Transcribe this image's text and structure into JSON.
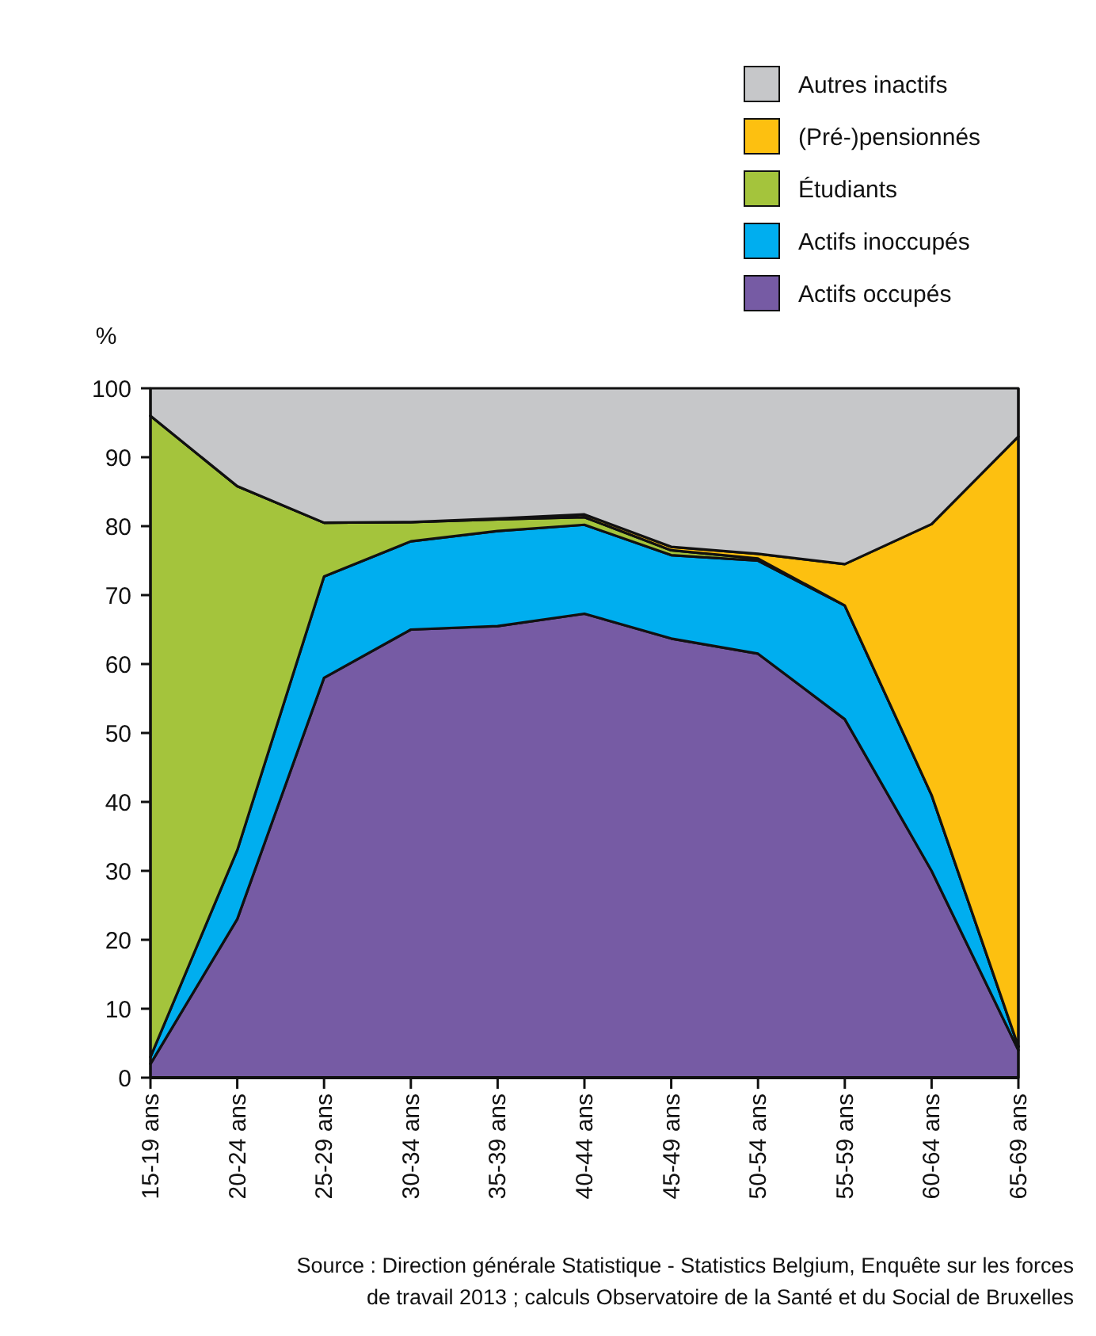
{
  "chart_data": {
    "type": "area",
    "stacked": true,
    "ylabel": "%",
    "categories": [
      "15-19 ans",
      "20-24 ans",
      "25-29 ans",
      "30-34 ans",
      "35-39 ans",
      "40-44 ans",
      "45-49 ans",
      "50-54 ans",
      "55-59 ans",
      "60-64 ans",
      "65-69 ans"
    ],
    "series": [
      {
        "name": "Actifs occupés",
        "color": "#765ba4",
        "values": [
          2,
          23,
          58,
          65,
          65.5,
          67.3,
          63.7,
          61.5,
          52,
          30,
          4
        ]
      },
      {
        "name": "Actifs inoccupés",
        "color": "#00aeef",
        "values": [
          1,
          10,
          14.7,
          12.8,
          13.8,
          12.9,
          12.1,
          13.5,
          16.5,
          11,
          0.5
        ]
      },
      {
        "name": "Étudiants",
        "color": "#a4c43c",
        "values": [
          93,
          52.8,
          7.8,
          2.8,
          1.7,
          1.1,
          0.7,
          0.3,
          0,
          0,
          0
        ]
      },
      {
        "name": "(Pré-)pensionnés",
        "color": "#fdc010",
        "values": [
          0,
          0,
          0,
          0,
          0.1,
          0.4,
          0.5,
          0.7,
          6,
          39.3,
          88.5
        ]
      },
      {
        "name": "Autres inactifs",
        "color": "#c6c7c9",
        "values": [
          4,
          14.2,
          19.5,
          19.4,
          18.9,
          18.3,
          23,
          24,
          25.5,
          19.7,
          7
        ]
      }
    ],
    "ylim": [
      0,
      100
    ],
    "yticks": [
      0,
      10,
      20,
      30,
      40,
      50,
      60,
      70,
      80,
      90,
      100
    ],
    "legend": "top right",
    "annotations": [
      "Source : Direction générale Statistique - Statistics Belgium, Enquête sur les forces de travail 2013 ; calculs Observatoire de la Santé et du Social de Bruxelles"
    ]
  }
}
